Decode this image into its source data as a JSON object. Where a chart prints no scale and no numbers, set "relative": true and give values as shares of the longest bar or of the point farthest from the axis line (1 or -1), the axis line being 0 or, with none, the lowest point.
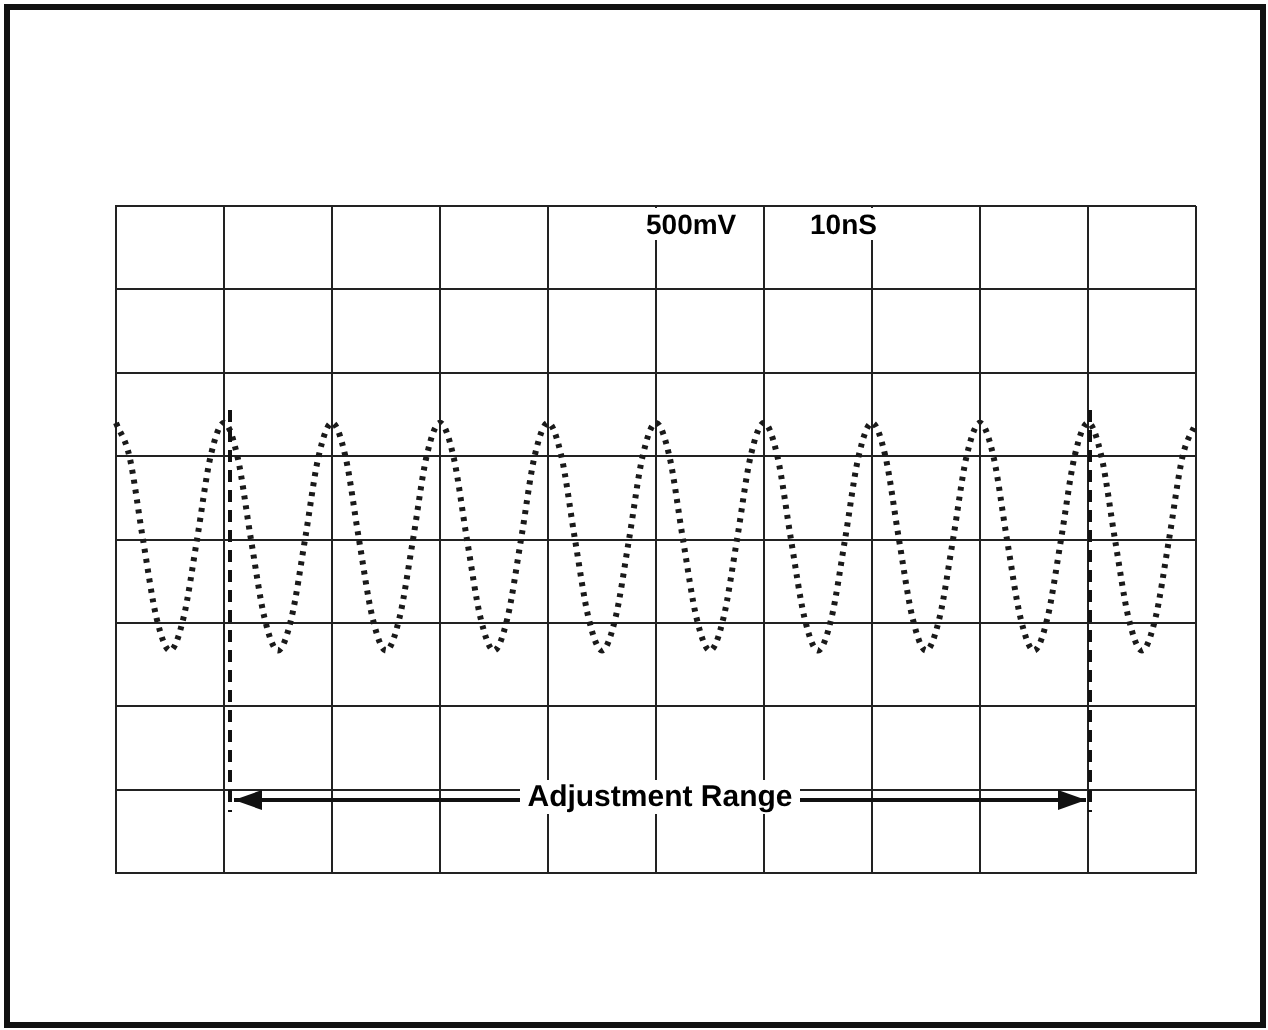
{
  "chart_data": {
    "type": "line",
    "relative": true,
    "color": "#1a1a1a",
    "line_style": "dotted",
    "grid": true,
    "categories": [
      null,
      null,
      null,
      null,
      null,
      null,
      null,
      null,
      null,
      null,
      null,
      null,
      null,
      null,
      null,
      null,
      null,
      null,
      null,
      null,
      null,
      null,
      null,
      null,
      null,
      null,
      null,
      null,
      null,
      null,
      null,
      null,
      null,
      null,
      null,
      null,
      null,
      null,
      null,
      null,
      null,
      null,
      null,
      null,
      null,
      null,
      null,
      null,
      null,
      null,
      null,
      null,
      null,
      null,
      null,
      null,
      null,
      null,
      null,
      null,
      null,
      null,
      null,
      null,
      null,
      null,
      null,
      null,
      null,
      null,
      null,
      null,
      null,
      null,
      null,
      null,
      null,
      null,
      null,
      null,
      null
    ],
    "values": [
      1,
      0.71,
      0,
      -0.67,
      -0.95,
      -0.67,
      0,
      0.71,
      1,
      0.71,
      0,
      -0.67,
      -0.95,
      -0.67,
      0,
      0.71,
      1,
      0.71,
      0,
      -0.67,
      -0.95,
      -0.67,
      0,
      0.71,
      1,
      0.71,
      0,
      -0.67,
      -0.95,
      -0.67,
      0,
      0.71,
      1,
      0.71,
      0,
      -0.67,
      -0.95,
      -0.67,
      0,
      0.71,
      1,
      0.71,
      0,
      -0.67,
      -0.95,
      -0.67,
      0,
      0.71,
      1,
      0.71,
      0,
      -0.67,
      -0.95,
      -0.67,
      0,
      0.71,
      1,
      0.71,
      0,
      -0.67,
      -0.95,
      -0.67,
      0,
      0.71,
      1,
      0.71,
      0,
      -0.67,
      -0.95,
      -0.67,
      0,
      0.71,
      1,
      0.71,
      0,
      -0.67,
      -0.95,
      -0.67,
      0,
      0.71,
      1
    ],
    "annotations": [
      "500mV",
      "10nS",
      "Adjustment Range"
    ]
  }
}
